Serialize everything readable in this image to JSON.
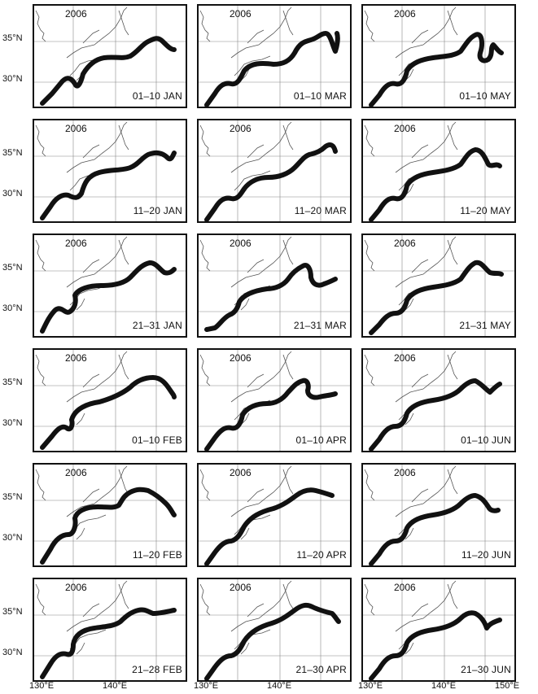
{
  "panels": [
    {
      "year": "2006",
      "period": "01–10 JAN",
      "path": "A"
    },
    {
      "year": "2006",
      "period": "11–20 JAN",
      "path": "B"
    },
    {
      "year": "2006",
      "period": "21–31 JAN",
      "path": "C"
    },
    {
      "year": "2006",
      "period": "01–10 FEB",
      "path": "D"
    },
    {
      "year": "2006",
      "period": "11–20 FEB",
      "path": "E"
    },
    {
      "year": "2006",
      "period": "21–28 FEB",
      "path": "F"
    },
    {
      "year": "2006",
      "period": "01–10 MAR",
      "path": "G"
    },
    {
      "year": "2006",
      "period": "11–20 MAR",
      "path": "H"
    },
    {
      "year": "2006",
      "period": "21–31 MAR",
      "path": "I"
    },
    {
      "year": "2006",
      "period": "01–10 APR",
      "path": "J"
    },
    {
      "year": "2006",
      "period": "11–20 APR",
      "path": "K"
    },
    {
      "year": "2006",
      "period": "21–30 APR",
      "path": "L"
    },
    {
      "year": "2006",
      "period": "01–10 MAY",
      "path": "M"
    },
    {
      "year": "2006",
      "period": "11–20 MAY",
      "path": "N"
    },
    {
      "year": "2006",
      "period": "21–31 MAY",
      "path": "O"
    },
    {
      "year": "2006",
      "period": "01–10 JUN",
      "path": "P"
    },
    {
      "year": "2006",
      "period": "11–20 JUN",
      "path": "Q"
    },
    {
      "year": "2006",
      "period": "21–30 JUN",
      "path": "R"
    }
  ],
  "y_labels": [
    "35°N",
    "30°N"
  ],
  "x_labels": [
    "130°E",
    "140°E",
    "150°E"
  ],
  "colors": {
    "path": "#111111",
    "coast": "#555555",
    "frame": "#111111",
    "grid": "#888888"
  }
}
